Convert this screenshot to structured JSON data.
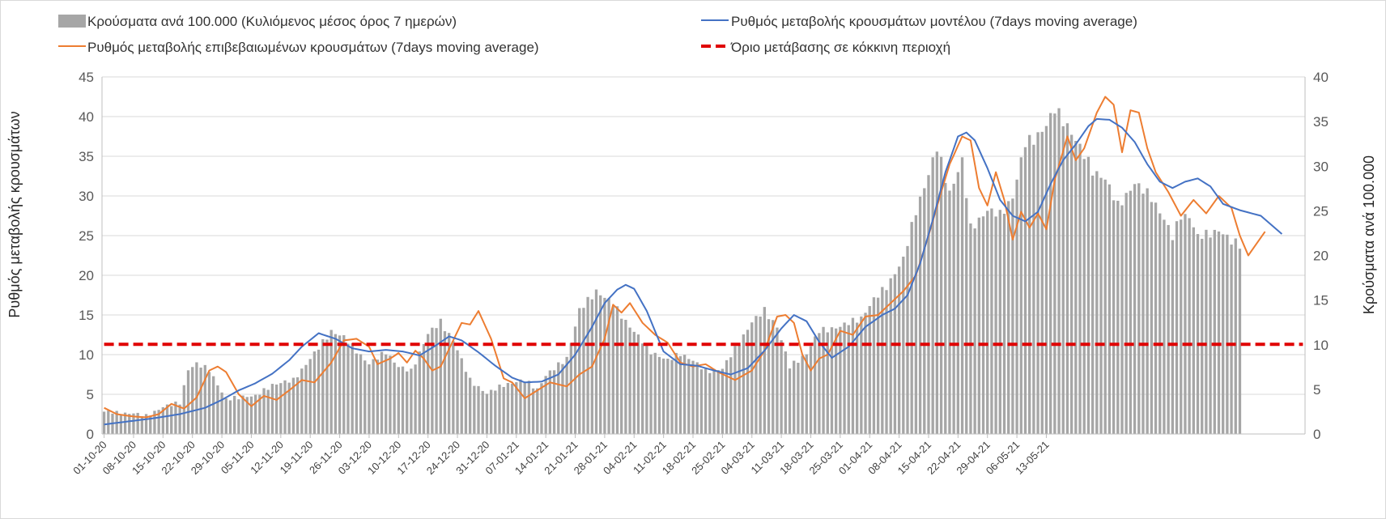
{
  "chart_data": {
    "type": "bar+line",
    "legend": [
      {
        "key": "bars",
        "label": "Κρούσματα ανά 100.000 (Κυλιόμενος μέσος όρος 7 ημερών)",
        "color": "#a6a6a6"
      },
      {
        "key": "model",
        "label": "Ρυθμός μεταβολής κρουσμάτων μοντέλου (7days moving average)",
        "color": "#4472c4"
      },
      {
        "key": "confirmed",
        "label": "Ρυθμός μεταβολής επιβεβαιωμένων κρουσμάτων (7days moving average)",
        "color": "#ed7d31"
      },
      {
        "key": "threshold",
        "label": "Όριο μετάβασης σε κόκκινη περιοχή",
        "color": "#e00000"
      }
    ],
    "y_left": {
      "title": "Ρυθμός μεταβολής κρουσμάτων",
      "min": 0,
      "max": 45,
      "ticks": [
        0,
        5,
        10,
        15,
        20,
        25,
        30,
        35,
        40,
        45
      ]
    },
    "y_right": {
      "title": "Κρούσματα ανά 100.000",
      "min": 0,
      "max": 40,
      "ticks": [
        0,
        5,
        10,
        15,
        20,
        25,
        30,
        35,
        40
      ]
    },
    "x_tick_labels": [
      "01-10-20",
      "08-10-20",
      "15-10-20",
      "22-10-20",
      "29-10-20",
      "05-11-20",
      "12-11-20",
      "19-11-20",
      "26-11-20",
      "03-12-20",
      "10-12-20",
      "17-12-20",
      "24-12-20",
      "31-12-20",
      "07-01-21",
      "14-01-21",
      "21-01-21",
      "28-01-21",
      "04-02-21",
      "11-02-21",
      "18-02-21",
      "25-02-21",
      "04-03-21",
      "11-03-21",
      "18-03-21",
      "25-03-21",
      "01-04-21",
      "08-04-21",
      "15-04-21",
      "22-04-21",
      "29-04-21",
      "06-05-21",
      "13-05-21"
    ],
    "grid": "horizontal",
    "legend_position": "top",
    "threshold_left_axis": 11.3,
    "bar_anchors_right_axis": [
      [
        0,
        2.5
      ],
      [
        4,
        2.3
      ],
      [
        7,
        2.3
      ],
      [
        10,
        2.0
      ],
      [
        14,
        3.0
      ],
      [
        18,
        3.5
      ],
      [
        20,
        7.2
      ],
      [
        22,
        7.8
      ],
      [
        25,
        7.2
      ],
      [
        29,
        3.8
      ],
      [
        33,
        4.2
      ],
      [
        36,
        4.2
      ],
      [
        40,
        5.5
      ],
      [
        45,
        6.0
      ],
      [
        50,
        9.0
      ],
      [
        54,
        11.5
      ],
      [
        57,
        10.8
      ],
      [
        63,
        7.8
      ],
      [
        67,
        9.2
      ],
      [
        70,
        7.5
      ],
      [
        73,
        7.0
      ],
      [
        77,
        11.2
      ],
      [
        80,
        12.5
      ],
      [
        83,
        10.5
      ],
      [
        87,
        6.0
      ],
      [
        91,
        4.5
      ],
      [
        95,
        5.5
      ],
      [
        100,
        6.0
      ],
      [
        103,
        5.0
      ],
      [
        105,
        6.5
      ],
      [
        110,
        8.5
      ],
      [
        113,
        13.8
      ],
      [
        117,
        16.0
      ],
      [
        121,
        14.5
      ],
      [
        125,
        12.0
      ],
      [
        130,
        9.2
      ],
      [
        134,
        8.2
      ],
      [
        137,
        9.0
      ],
      [
        140,
        8.2
      ],
      [
        143,
        7.0
      ],
      [
        147,
        7.3
      ],
      [
        150,
        9.5
      ],
      [
        154,
        12.5
      ],
      [
        157,
        13.8
      ],
      [
        160,
        12.0
      ],
      [
        163,
        7.5
      ],
      [
        167,
        9.0
      ],
      [
        170,
        11.5
      ],
      [
        175,
        12.0
      ],
      [
        180,
        13.0
      ],
      [
        183,
        15.0
      ],
      [
        186,
        16.5
      ],
      [
        190,
        19.5
      ],
      [
        193,
        25.0
      ],
      [
        196,
        29.0
      ],
      [
        198,
        32.0
      ],
      [
        201,
        27.0
      ],
      [
        204,
        30.5
      ],
      [
        206,
        23.0
      ],
      [
        210,
        25.0
      ],
      [
        213,
        24.5
      ],
      [
        216,
        26.5
      ],
      [
        219,
        32.5
      ],
      [
        221,
        33.0
      ],
      [
        224,
        34.5
      ],
      [
        226,
        36.3
      ],
      [
        229,
        34.5
      ],
      [
        232,
        32.0
      ],
      [
        235,
        29.5
      ],
      [
        238,
        28.5
      ],
      [
        241,
        25.5
      ],
      [
        245,
        28.0
      ],
      [
        249,
        26.5
      ],
      [
        252,
        24.0
      ],
      [
        254,
        22.0
      ],
      [
        256,
        24.5
      ],
      [
        258,
        24.3
      ],
      [
        260,
        22.0
      ],
      [
        262,
        22.3
      ],
      [
        265,
        22.8
      ],
      [
        268,
        21.5
      ],
      [
        270,
        21.2
      ]
    ],
    "model_anchors_left_axis": [
      [
        0,
        1.2
      ],
      [
        6,
        1.6
      ],
      [
        12,
        2.0
      ],
      [
        18,
        2.5
      ],
      [
        24,
        3.3
      ],
      [
        28,
        4.3
      ],
      [
        32,
        5.5
      ],
      [
        36,
        6.4
      ],
      [
        40,
        7.6
      ],
      [
        44,
        9.3
      ],
      [
        47,
        11.0
      ],
      [
        51,
        12.7
      ],
      [
        55,
        12.0
      ],
      [
        59,
        10.8
      ],
      [
        63,
        10.4
      ],
      [
        67,
        10.6
      ],
      [
        71,
        10.4
      ],
      [
        75,
        9.9
      ],
      [
        79,
        11.2
      ],
      [
        82,
        12.3
      ],
      [
        85,
        11.8
      ],
      [
        89,
        10.3
      ],
      [
        93,
        8.6
      ],
      [
        97,
        7.1
      ],
      [
        100,
        6.5
      ],
      [
        104,
        6.6
      ],
      [
        108,
        7.5
      ],
      [
        112,
        10.0
      ],
      [
        116,
        13.5
      ],
      [
        119,
        16.5
      ],
      [
        122,
        18.2
      ],
      [
        124,
        18.8
      ],
      [
        126,
        18.3
      ],
      [
        129,
        15.5
      ],
      [
        133,
        10.4
      ],
      [
        137,
        8.8
      ],
      [
        141,
        8.6
      ],
      [
        145,
        8.0
      ],
      [
        149,
        7.5
      ],
      [
        153,
        8.3
      ],
      [
        157,
        10.5
      ],
      [
        161,
        13.3
      ],
      [
        164,
        15.0
      ],
      [
        167,
        14.2
      ],
      [
        170,
        11.6
      ],
      [
        173,
        9.6
      ],
      [
        177,
        11.0
      ],
      [
        181,
        13.5
      ],
      [
        185,
        15.0
      ],
      [
        188,
        15.8
      ],
      [
        191,
        17.5
      ],
      [
        194,
        21.5
      ],
      [
        197,
        27.0
      ],
      [
        200,
        33.0
      ],
      [
        203,
        37.5
      ],
      [
        205,
        38.0
      ],
      [
        207,
        37.0
      ],
      [
        210,
        33.5
      ],
      [
        213,
        29.5
      ],
      [
        216,
        27.5
      ],
      [
        219,
        26.8
      ],
      [
        222,
        28.0
      ],
      [
        225,
        31.5
      ],
      [
        228,
        34.5
      ],
      [
        231,
        36.5
      ],
      [
        234,
        38.8
      ],
      [
        236,
        39.7
      ],
      [
        239,
        39.6
      ],
      [
        242,
        38.6
      ],
      [
        245,
        36.8
      ],
      [
        248,
        34.0
      ],
      [
        251,
        31.8
      ],
      [
        254,
        31.0
      ],
      [
        257,
        31.8
      ],
      [
        260,
        32.2
      ],
      [
        263,
        31.2
      ],
      [
        266,
        29.0
      ],
      [
        270,
        28.2
      ],
      [
        275,
        27.5
      ],
      [
        280,
        25.2
      ]
    ],
    "confirmed_anchors_left_axis": [
      [
        0,
        3.3
      ],
      [
        3,
        2.5
      ],
      [
        7,
        2.2
      ],
      [
        10,
        2.1
      ],
      [
        13,
        2.5
      ],
      [
        16,
        3.8
      ],
      [
        19,
        3.2
      ],
      [
        22,
        4.6
      ],
      [
        25,
        8.0
      ],
      [
        27,
        8.5
      ],
      [
        29,
        7.8
      ],
      [
        32,
        5.0
      ],
      [
        35,
        3.5
      ],
      [
        38,
        4.8
      ],
      [
        41,
        4.3
      ],
      [
        44,
        5.5
      ],
      [
        47,
        6.8
      ],
      [
        50,
        6.5
      ],
      [
        54,
        9.0
      ],
      [
        57,
        11.8
      ],
      [
        60,
        12.0
      ],
      [
        63,
        11.0
      ],
      [
        65,
        8.8
      ],
      [
        68,
        9.5
      ],
      [
        70,
        10.2
      ],
      [
        72,
        9.0
      ],
      [
        74,
        10.5
      ],
      [
        76,
        9.5
      ],
      [
        78,
        8.0
      ],
      [
        80,
        8.5
      ],
      [
        83,
        11.8
      ],
      [
        85,
        14.0
      ],
      [
        87,
        13.8
      ],
      [
        89,
        15.5
      ],
      [
        92,
        12.0
      ],
      [
        95,
        7.0
      ],
      [
        97,
        6.5
      ],
      [
        100,
        4.5
      ],
      [
        103,
        5.5
      ],
      [
        106,
        6.5
      ],
      [
        110,
        6.0
      ],
      [
        113,
        7.5
      ],
      [
        116,
        8.5
      ],
      [
        119,
        12.0
      ],
      [
        121,
        16.3
      ],
      [
        123,
        15.3
      ],
      [
        125,
        16.5
      ],
      [
        128,
        14.0
      ],
      [
        131,
        12.5
      ],
      [
        134,
        11.5
      ],
      [
        137,
        9.0
      ],
      [
        140,
        8.5
      ],
      [
        143,
        8.8
      ],
      [
        146,
        7.8
      ],
      [
        150,
        6.8
      ],
      [
        154,
        8.0
      ],
      [
        157,
        10.5
      ],
      [
        160,
        14.8
      ],
      [
        162,
        15.0
      ],
      [
        164,
        14.0
      ],
      [
        166,
        10.0
      ],
      [
        168,
        8.0
      ],
      [
        170,
        9.5
      ],
      [
        172,
        10.0
      ],
      [
        175,
        13.0
      ],
      [
        178,
        12.5
      ],
      [
        181,
        14.8
      ],
      [
        184,
        15.0
      ],
      [
        187,
        16.5
      ],
      [
        190,
        18.0
      ],
      [
        193,
        20.0
      ],
      [
        196,
        25.0
      ],
      [
        199,
        30.5
      ],
      [
        201,
        34.0
      ],
      [
        204,
        37.5
      ],
      [
        206,
        37.0
      ],
      [
        208,
        31.0
      ],
      [
        210,
        28.8
      ],
      [
        212,
        33.0
      ],
      [
        214,
        29.5
      ],
      [
        216,
        24.5
      ],
      [
        218,
        28.0
      ],
      [
        220,
        26.0
      ],
      [
        222,
        27.8
      ],
      [
        224,
        25.8
      ],
      [
        226,
        32.0
      ],
      [
        229,
        37.5
      ],
      [
        231,
        34.5
      ],
      [
        233,
        36.0
      ],
      [
        236,
        40.5
      ],
      [
        238,
        42.5
      ],
      [
        240,
        41.5
      ],
      [
        242,
        35.5
      ],
      [
        244,
        40.8
      ],
      [
        246,
        40.5
      ],
      [
        248,
        36.0
      ],
      [
        250,
        33.0
      ],
      [
        253,
        30.5
      ],
      [
        256,
        27.5
      ],
      [
        259,
        29.5
      ],
      [
        262,
        27.8
      ],
      [
        265,
        30.0
      ],
      [
        268,
        28.5
      ],
      [
        270,
        25.0
      ],
      [
        272,
        22.5
      ],
      [
        274,
        24.0
      ],
      [
        276,
        25.5
      ]
    ]
  }
}
